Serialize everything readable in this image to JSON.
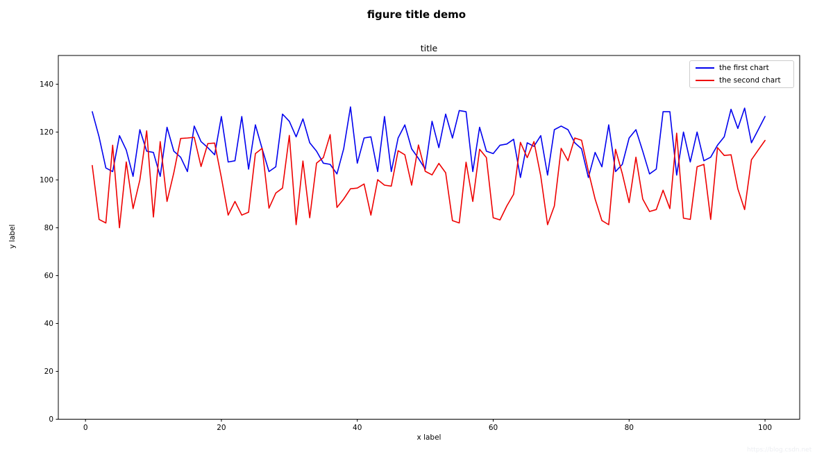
{
  "figure": {
    "suptitle": "figure title demo",
    "watermark": "https://blog.csdn.net"
  },
  "chart_data": {
    "type": "line",
    "title": "title",
    "xlabel": "x label",
    "ylabel": "y label",
    "xlim": [
      -4,
      105.1
    ],
    "ylim": [
      0,
      152
    ],
    "xticks": [
      0,
      20,
      40,
      60,
      80,
      100
    ],
    "yticks": [
      0,
      20,
      40,
      60,
      80,
      100,
      120,
      140
    ],
    "grid": false,
    "legend_position": "upper right",
    "x_start": 1,
    "x_step": 1,
    "series": [
      {
        "name": "the first chart",
        "color": "#0000ee",
        "values": [
          128.5,
          118,
          105,
          103.5,
          118.5,
          112.5,
          101.5,
          121,
          112,
          111.5,
          101.5,
          122,
          112,
          109.5,
          103.5,
          122.5,
          116,
          113.5,
          110.5,
          126.5,
          107.5,
          108,
          126.5,
          104.5,
          123,
          113,
          103.5,
          105.5,
          127.5,
          124.5,
          118,
          125.5,
          115.5,
          112,
          107,
          106.5,
          102.5,
          113,
          130.5,
          107,
          117.5,
          118,
          103.5,
          126.5,
          103.5,
          117.5,
          123,
          113,
          109,
          104.5,
          124.5,
          113.5,
          127.5,
          117.5,
          129,
          128.5,
          103.5,
          122,
          112,
          111,
          114.5,
          115,
          117,
          101,
          115.5,
          114,
          118.5,
          102,
          121,
          122.5,
          121,
          115.5,
          113,
          101,
          111.5,
          105.5,
          123,
          103.5,
          106.5,
          117.5,
          121,
          112,
          102.5,
          104.5,
          128.5,
          128.5,
          102,
          120,
          107.5,
          120,
          108,
          109.5,
          114.5,
          118,
          129.5,
          121.5,
          130,
          115.5,
          121,
          126.5
        ]
      },
      {
        "name": "the second chart",
        "color": "#ee0000",
        "values": [
          106,
          83.5,
          82,
          114.5,
          80,
          107.5,
          88,
          100,
          120.5,
          84.5,
          116,
          91,
          103,
          117.3,
          117.5,
          117.8,
          105.6,
          115.2,
          115.4,
          101,
          85.3,
          91,
          85.3,
          86.5,
          111,
          113.2,
          88.2,
          94.5,
          96.6,
          118.6,
          81.3,
          107.9,
          84.2,
          107,
          109.3,
          118.9,
          88.5,
          92,
          96.3,
          96.6,
          98.3,
          85.3,
          100.1,
          97.8,
          97.4,
          112.2,
          110.5,
          97.8,
          114.6,
          103.6,
          102.1,
          106.9,
          103,
          83,
          82,
          107.4,
          91,
          112.8,
          109.3,
          84.2,
          83.3,
          89.1,
          94,
          115.7,
          109.3,
          116,
          101.6,
          81.3,
          89.1,
          113.2,
          108,
          117.5,
          116.6,
          103.6,
          92,
          83,
          81.3,
          112.8,
          102.6,
          90.5,
          109.5,
          92,
          86.8,
          87.6,
          95.7,
          88,
          119.5,
          84,
          83.5,
          105.5,
          106.5,
          83.5,
          113.5,
          110.2,
          110.5,
          96.3,
          87.6,
          108.4,
          112.5,
          116.5
        ]
      }
    ]
  },
  "legend": {
    "items": [
      {
        "label": "the first chart"
      },
      {
        "label": "the second chart"
      }
    ]
  },
  "plot_geometry_note": "axes frame black, no grid, ticks outside"
}
